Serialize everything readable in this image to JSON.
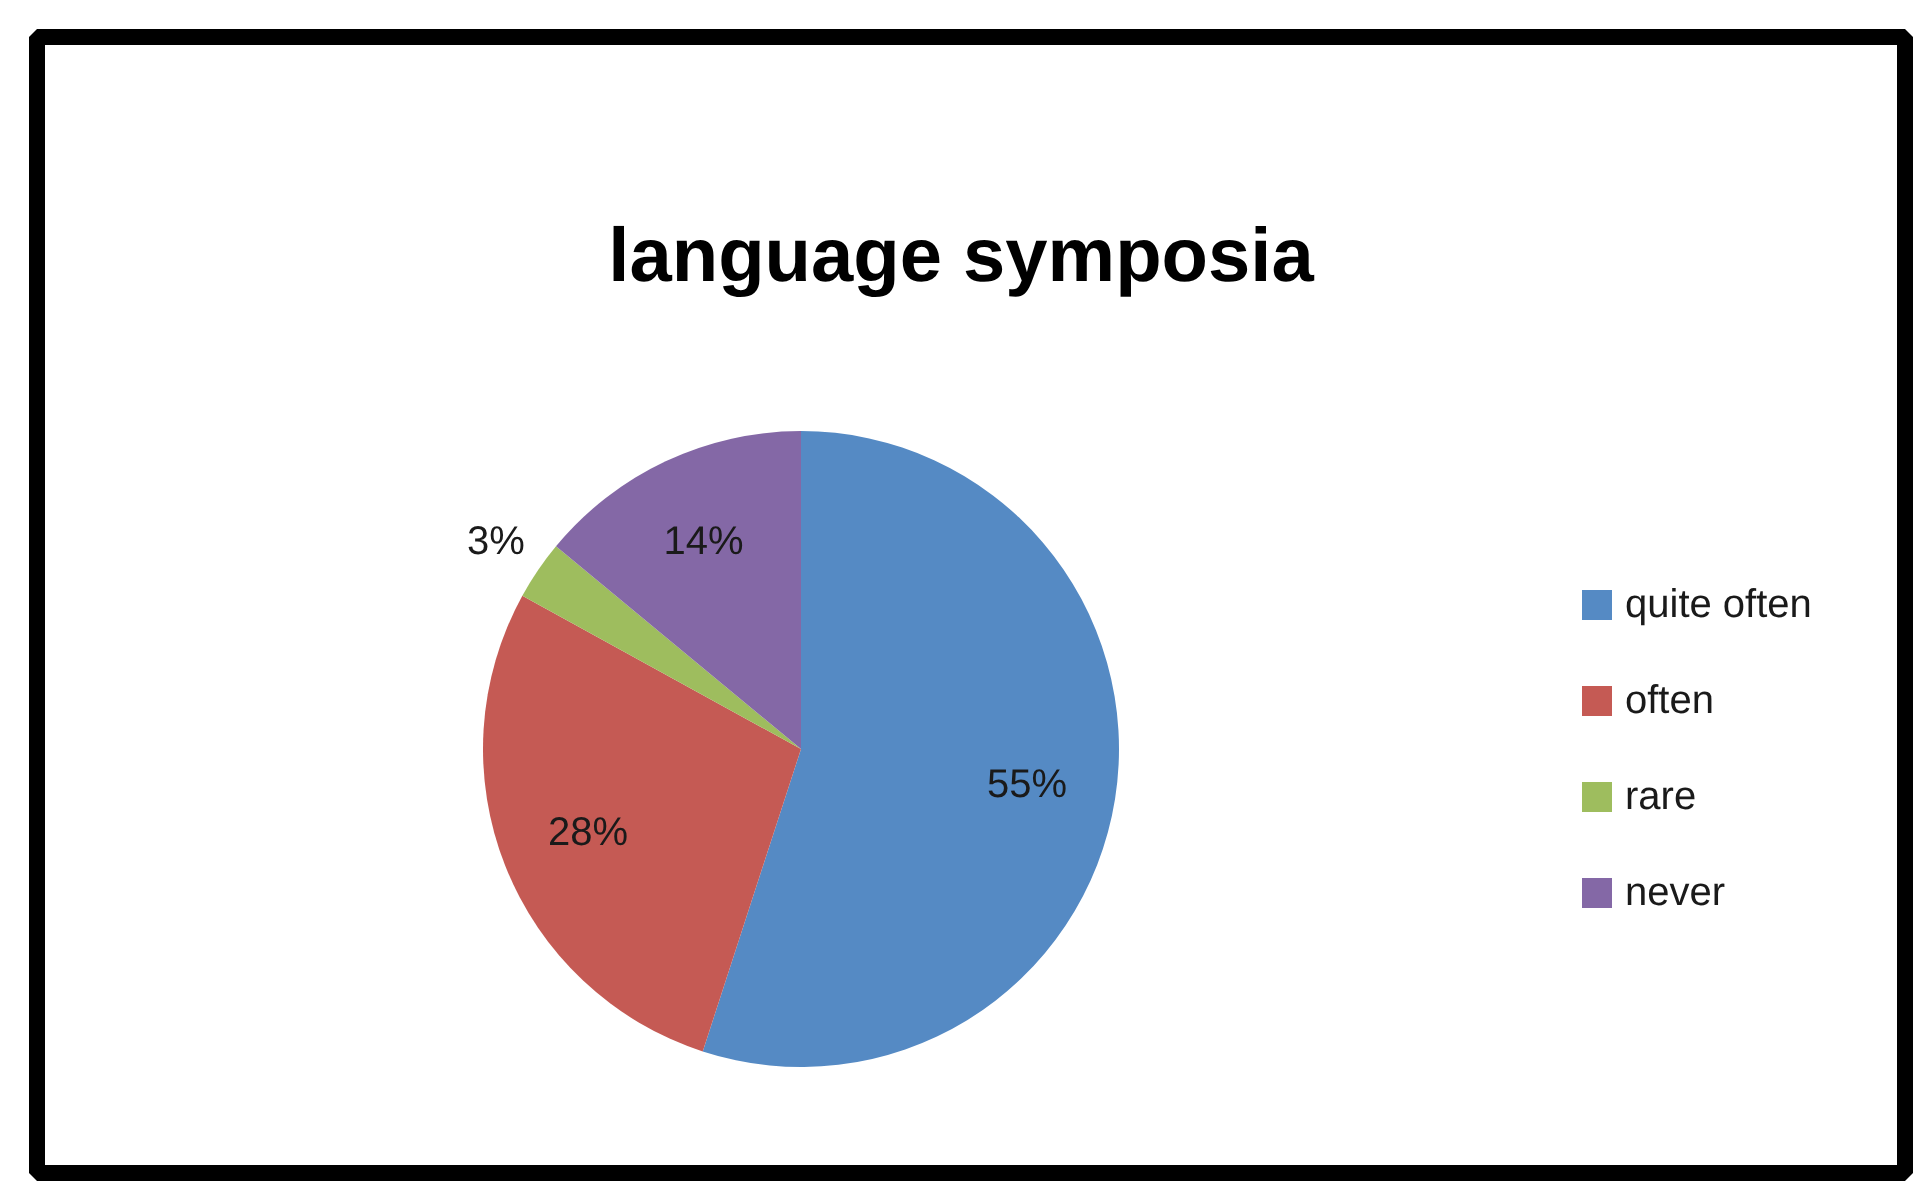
{
  "chart_data": {
    "type": "pie",
    "title": "language symposia",
    "categories": [
      "quite often",
      "often",
      "rare",
      "never"
    ],
    "values": [
      55,
      28,
      3,
      14
    ],
    "colors": [
      "#558ac4",
      "#c55a54",
      "#9ebd5e",
      "#8468a6"
    ],
    "value_labels": [
      "55%",
      "28%",
      "3%",
      "14%"
    ],
    "legend": "right"
  }
}
